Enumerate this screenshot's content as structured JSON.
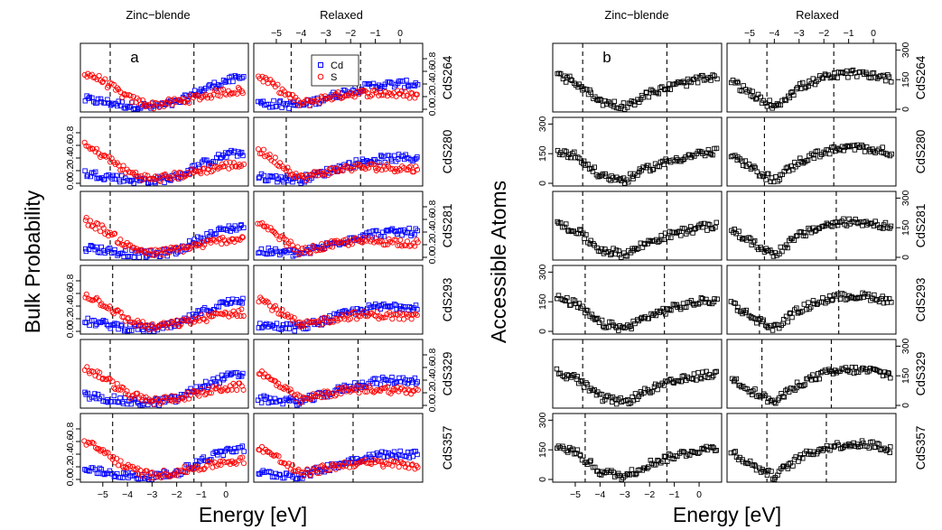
{
  "figure": {
    "column_titles": [
      "Zinc−blende",
      "Relaxed"
    ],
    "xlabel": "Energy [eV]",
    "panel_a_ylabel": "Bulk Probability",
    "panel_b_ylabel": "Accessible Atoms",
    "panel_labels": [
      "a",
      "b"
    ]
  },
  "chart_data": [
    {
      "type": "scatter",
      "panel": "a",
      "title": "",
      "xlabel": "Energy [eV]",
      "ylabel": "Bulk Probability",
      "column_titles": [
        "Zinc−blende",
        "Relaxed"
      ],
      "xlim": [
        -5.8,
        0.8
      ],
      "ylim": [
        0,
        1.0
      ],
      "x_ticks": [
        -5,
        -4,
        -3,
        -2,
        -1,
        0
      ],
      "x_tick_labels": [
        "−5",
        "−4",
        "−3",
        "−2",
        "−1",
        "0"
      ],
      "y_ticks": [
        0.0,
        0.2,
        0.4,
        0.6,
        0.8
      ],
      "y_tick_labels": [
        "0.0",
        "0.2",
        "0.4",
        "0.6",
        "0.8"
      ],
      "legend": {
        "position": "top",
        "entries": [
          {
            "name": "Cd",
            "color": "#0000ff",
            "marker": "square"
          },
          {
            "name": "S",
            "color": "#ff0000",
            "marker": "circle"
          }
        ]
      },
      "rows": [
        {
          "structure": "CdS264",
          "dashed_lines": {
            "zb": [
              -4.7,
              -1.3
            ],
            "rx": [
              -4.4,
              -1.6
            ]
          }
        },
        {
          "structure": "CdS280",
          "dashed_lines": {
            "zb": [
              -4.7,
              -1.3
            ],
            "rx": [
              -4.6,
              -1.6
            ]
          }
        },
        {
          "structure": "CdS281",
          "dashed_lines": {
            "zb": [
              -4.7,
              -1.3
            ],
            "rx": [
              -4.7,
              -1.5
            ]
          }
        },
        {
          "structure": "CdS293",
          "dashed_lines": {
            "zb": [
              -4.6,
              -1.4
            ],
            "rx": [
              -4.8,
              -1.4
            ]
          }
        },
        {
          "structure": "CdS329",
          "dashed_lines": {
            "zb": [
              -4.7,
              -1.3
            ],
            "rx": [
              -4.5,
              -1.7
            ]
          }
        },
        {
          "structure": "CdS357",
          "dashed_lines": {
            "zb": [
              -4.6,
              -1.3
            ],
            "rx": [
              -4.3,
              -1.9
            ]
          }
        }
      ],
      "series": [
        {
          "name": "Cd",
          "color": "#0000ff",
          "trend_zb": [
            [
              -5.8,
              0.16
            ],
            [
              -5.0,
              0.12
            ],
            [
              -4.0,
              0.06
            ],
            [
              -3.0,
              0.04
            ],
            [
              -2.0,
              0.1
            ],
            [
              -1.0,
              0.3
            ],
            [
              0.0,
              0.45
            ],
            [
              0.8,
              0.5
            ]
          ],
          "trend_rx": [
            [
              -5.8,
              0.1
            ],
            [
              -5.0,
              0.08
            ],
            [
              -4.0,
              0.06
            ],
            [
              -3.0,
              0.18
            ],
            [
              -2.0,
              0.3
            ],
            [
              -1.0,
              0.38
            ],
            [
              0.0,
              0.4
            ],
            [
              0.8,
              0.4
            ]
          ]
        },
        {
          "name": "S",
          "color": "#ff0000",
          "trend_zb": [
            [
              -5.8,
              0.6
            ],
            [
              -5.0,
              0.45
            ],
            [
              -4.0,
              0.18
            ],
            [
              -3.0,
              0.06
            ],
            [
              -2.0,
              0.12
            ],
            [
              -1.0,
              0.2
            ],
            [
              0.0,
              0.28
            ],
            [
              0.8,
              0.3
            ]
          ],
          "trend_rx": [
            [
              -5.8,
              0.55
            ],
            [
              -5.0,
              0.35
            ],
            [
              -4.0,
              0.08
            ],
            [
              -3.0,
              0.18
            ],
            [
              -2.0,
              0.25
            ],
            [
              -1.0,
              0.26
            ],
            [
              0.0,
              0.24
            ],
            [
              0.8,
              0.22
            ]
          ]
        }
      ]
    },
    {
      "type": "scatter",
      "panel": "b",
      "title": "",
      "xlabel": "Energy [eV]",
      "ylabel": "Accessible Atoms",
      "column_titles": [
        "Zinc−blende",
        "Relaxed"
      ],
      "xlim": [
        -5.8,
        0.8
      ],
      "ylim": [
        0,
        320
      ],
      "x_ticks": [
        -5,
        -4,
        -3,
        -2,
        -1,
        0
      ],
      "x_tick_labels": [
        "−5",
        "−4",
        "−3",
        "−2",
        "−1",
        "0"
      ],
      "y_ticks": [
        0,
        150,
        300
      ],
      "y_tick_labels": [
        "0",
        "150",
        "300"
      ],
      "rows": [
        {
          "structure": "CdS264",
          "dashed_lines": {
            "zb": [
              -4.7,
              -1.3
            ],
            "rx": [
              -4.3,
              -1.6
            ]
          }
        },
        {
          "structure": "CdS280",
          "dashed_lines": {
            "zb": [
              -4.7,
              -1.3
            ],
            "rx": [
              -4.4,
              -1.6
            ]
          }
        },
        {
          "structure": "CdS281",
          "dashed_lines": {
            "zb": [
              -4.7,
              -1.3
            ],
            "rx": [
              -4.4,
              -1.5
            ]
          }
        },
        {
          "structure": "CdS293",
          "dashed_lines": {
            "zb": [
              -4.6,
              -1.4
            ],
            "rx": [
              -4.6,
              -1.4
            ]
          }
        },
        {
          "structure": "CdS329",
          "dashed_lines": {
            "zb": [
              -4.7,
              -1.3
            ],
            "rx": [
              -4.5,
              -1.7
            ]
          }
        },
        {
          "structure": "CdS357",
          "dashed_lines": {
            "zb": [
              -4.6,
              -1.3
            ],
            "rx": [
              -4.3,
              -1.9
            ]
          }
        }
      ],
      "series": [
        {
          "name": "Accessible atoms",
          "color": "#000000",
          "trend_zb": [
            [
              -5.8,
              170
            ],
            [
              -5.0,
              140
            ],
            [
              -4.0,
              40
            ],
            [
              -3.0,
              15
            ],
            [
              -2.0,
              80
            ],
            [
              -1.0,
              120
            ],
            [
              0.0,
              150
            ],
            [
              0.8,
              160
            ]
          ],
          "trend_rx": [
            [
              -5.8,
              150
            ],
            [
              -5.0,
              80
            ],
            [
              -4.0,
              15
            ],
            [
              -3.0,
              110
            ],
            [
              -2.0,
              160
            ],
            [
              -1.0,
              180
            ],
            [
              0.0,
              175
            ],
            [
              0.8,
              150
            ]
          ]
        }
      ]
    }
  ]
}
